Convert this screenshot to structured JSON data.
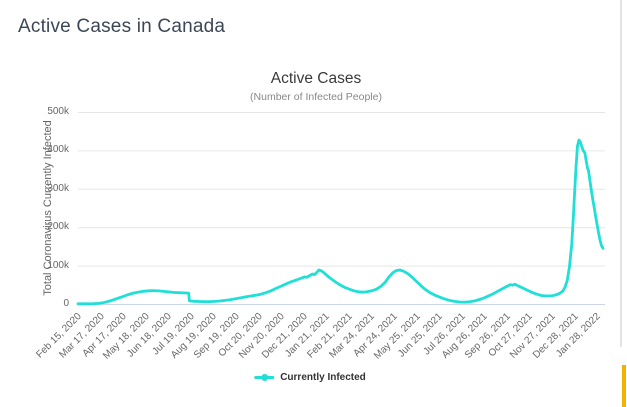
{
  "page": {
    "title": "Active Cases in Canada"
  },
  "colors": {
    "accent_line": "#20dfd6",
    "gridline": "#e6e6e6",
    "axis_line": "#ccd6eb",
    "title_text": "#3c4756",
    "muted_text": "#666666",
    "legend_text": "#333333",
    "right_border": "#e3e3e3",
    "yellow_strip": "#f0b400"
  },
  "chart_data": {
    "type": "line",
    "title": "Active Cases",
    "subtitle": "(Number of Infected People)",
    "xlabel": "",
    "ylabel": "Total Coronavirus Currently Infected",
    "legend": [
      "Currently Infected"
    ],
    "legend_position": "bottom",
    "grid": true,
    "x_range": [
      "2020-02-15",
      "2022-02-05"
    ],
    "y_range": [
      0,
      500000
    ],
    "y_ticks": [
      {
        "value": 0,
        "label": "0"
      },
      {
        "value": 100000,
        "label": "100k"
      },
      {
        "value": 200000,
        "label": "200k"
      },
      {
        "value": 300000,
        "label": "300k"
      },
      {
        "value": 400000,
        "label": "400k"
      },
      {
        "value": 500000,
        "label": "500k"
      }
    ],
    "x_ticks": [
      {
        "date": "2020-02-15",
        "label": "Feb 15, 2020"
      },
      {
        "date": "2020-03-17",
        "label": "Mar 17, 2020"
      },
      {
        "date": "2020-04-17",
        "label": "Apr 17, 2020"
      },
      {
        "date": "2020-05-18",
        "label": "May 18, 2020"
      },
      {
        "date": "2020-06-18",
        "label": "Jun 18, 2020"
      },
      {
        "date": "2020-07-19",
        "label": "Jul 19, 2020"
      },
      {
        "date": "2020-08-19",
        "label": "Aug 19, 2020"
      },
      {
        "date": "2020-09-19",
        "label": "Sep 19, 2020"
      },
      {
        "date": "2020-10-20",
        "label": "Oct 20, 2020"
      },
      {
        "date": "2020-11-20",
        "label": "Nov 20, 2020"
      },
      {
        "date": "2020-12-21",
        "label": "Dec 21, 2020"
      },
      {
        "date": "2021-01-21",
        "label": "Jan 21, 2021"
      },
      {
        "date": "2021-02-21",
        "label": "Feb 21, 2021"
      },
      {
        "date": "2021-03-24",
        "label": "Mar 24, 2021"
      },
      {
        "date": "2021-04-24",
        "label": "Apr 24, 2021"
      },
      {
        "date": "2021-05-25",
        "label": "May 25, 2021"
      },
      {
        "date": "2021-06-25",
        "label": "Jun 25, 2021"
      },
      {
        "date": "2021-07-26",
        "label": "Jul 26, 2021"
      },
      {
        "date": "2021-08-26",
        "label": "Aug 26, 2021"
      },
      {
        "date": "2021-09-26",
        "label": "Sep 26, 2021"
      },
      {
        "date": "2021-10-27",
        "label": "Oct 27, 2021"
      },
      {
        "date": "2021-11-27",
        "label": "Nov 27, 2021"
      },
      {
        "date": "2021-12-28",
        "label": "Dec 28, 2021"
      },
      {
        "date": "2022-01-28",
        "label": "Jan 28, 2022"
      }
    ],
    "series": [
      {
        "name": "Currently Infected",
        "color": "#20dfd6",
        "points": [
          [
            "2020-02-15",
            400
          ],
          [
            "2020-02-22",
            400
          ],
          [
            "2020-02-29",
            500
          ],
          [
            "2020-03-07",
            800
          ],
          [
            "2020-03-14",
            1600
          ],
          [
            "2020-03-20",
            3200
          ],
          [
            "2020-03-27",
            6500
          ],
          [
            "2020-04-03",
            10500
          ],
          [
            "2020-04-10",
            15000
          ],
          [
            "2020-04-17",
            19500
          ],
          [
            "2020-04-24",
            24500
          ],
          [
            "2020-05-01",
            28500
          ],
          [
            "2020-05-08",
            31000
          ],
          [
            "2020-05-15",
            33000
          ],
          [
            "2020-05-22",
            34300
          ],
          [
            "2020-05-29",
            34800
          ],
          [
            "2020-06-05",
            34200
          ],
          [
            "2020-06-12",
            32800
          ],
          [
            "2020-06-18",
            31500
          ],
          [
            "2020-06-25",
            30200
          ],
          [
            "2020-07-02",
            29300
          ],
          [
            "2020-07-09",
            28800
          ],
          [
            "2020-07-16",
            28500
          ],
          [
            "2020-07-17",
            8200
          ],
          [
            "2020-07-24",
            7000
          ],
          [
            "2020-07-31",
            6400
          ],
          [
            "2020-08-07",
            6100
          ],
          [
            "2020-08-14",
            6300
          ],
          [
            "2020-08-21",
            6900
          ],
          [
            "2020-08-28",
            7900
          ],
          [
            "2020-09-04",
            9300
          ],
          [
            "2020-09-11",
            11200
          ],
          [
            "2020-09-18",
            13500
          ],
          [
            "2020-09-25",
            16000
          ],
          [
            "2020-10-02",
            18500
          ],
          [
            "2020-10-09",
            20800
          ],
          [
            "2020-10-16",
            22800
          ],
          [
            "2020-10-23",
            25500
          ],
          [
            "2020-10-30",
            29500
          ],
          [
            "2020-11-06",
            34500
          ],
          [
            "2020-11-13",
            40500
          ],
          [
            "2020-11-20",
            46500
          ],
          [
            "2020-11-27",
            52500
          ],
          [
            "2020-12-04",
            58000
          ],
          [
            "2020-12-11",
            62500
          ],
          [
            "2020-12-18",
            67500
          ],
          [
            "2020-12-22",
            70500
          ],
          [
            "2020-12-25",
            69500
          ],
          [
            "2020-12-29",
            74000
          ],
          [
            "2021-01-02",
            78000
          ],
          [
            "2021-01-05",
            76500
          ],
          [
            "2021-01-08",
            82500
          ],
          [
            "2021-01-11",
            88500
          ],
          [
            "2021-01-14",
            86500
          ],
          [
            "2021-01-18",
            81000
          ],
          [
            "2021-01-22",
            74500
          ],
          [
            "2021-01-26",
            68000
          ],
          [
            "2021-01-31",
            61000
          ],
          [
            "2021-02-05",
            54500
          ],
          [
            "2021-02-10",
            48500
          ],
          [
            "2021-02-15",
            43500
          ],
          [
            "2021-02-21",
            39000
          ],
          [
            "2021-02-27",
            35000
          ],
          [
            "2021-03-05",
            32000
          ],
          [
            "2021-03-11",
            30800
          ],
          [
            "2021-03-17",
            31500
          ],
          [
            "2021-03-24",
            34000
          ],
          [
            "2021-03-31",
            38500
          ],
          [
            "2021-04-06",
            46000
          ],
          [
            "2021-04-12",
            57000
          ],
          [
            "2021-04-17",
            70000
          ],
          [
            "2021-04-22",
            81000
          ],
          [
            "2021-04-27",
            87000
          ],
          [
            "2021-05-02",
            88500
          ],
          [
            "2021-05-07",
            85500
          ],
          [
            "2021-05-13",
            79000
          ],
          [
            "2021-05-19",
            69500
          ],
          [
            "2021-05-25",
            58500
          ],
          [
            "2021-05-31",
            47500
          ],
          [
            "2021-06-06",
            38000
          ],
          [
            "2021-06-12",
            30000
          ],
          [
            "2021-06-18",
            24000
          ],
          [
            "2021-06-25",
            18500
          ],
          [
            "2021-07-02",
            13500
          ],
          [
            "2021-07-09",
            9500
          ],
          [
            "2021-07-16",
            6800
          ],
          [
            "2021-07-23",
            5200
          ],
          [
            "2021-07-30",
            4800
          ],
          [
            "2021-08-06",
            5800
          ],
          [
            "2021-08-13",
            8200
          ],
          [
            "2021-08-20",
            12000
          ],
          [
            "2021-08-27",
            17000
          ],
          [
            "2021-09-03",
            23000
          ],
          [
            "2021-09-10",
            29500
          ],
          [
            "2021-09-16",
            36000
          ],
          [
            "2021-09-22",
            42000
          ],
          [
            "2021-09-27",
            47000
          ],
          [
            "2021-10-01",
            50500
          ],
          [
            "2021-10-04",
            49000
          ],
          [
            "2021-10-07",
            51500
          ],
          [
            "2021-10-10",
            48500
          ],
          [
            "2021-10-14",
            45000
          ],
          [
            "2021-10-19",
            40500
          ],
          [
            "2021-10-24",
            36000
          ],
          [
            "2021-10-29",
            31500
          ],
          [
            "2021-11-03",
            27500
          ],
          [
            "2021-11-08",
            24500
          ],
          [
            "2021-11-13",
            22000
          ],
          [
            "2021-11-18",
            21000
          ],
          [
            "2021-11-23",
            21000
          ],
          [
            "2021-11-28",
            22000
          ],
          [
            "2021-12-03",
            24000
          ],
          [
            "2021-12-08",
            28000
          ],
          [
            "2021-12-12",
            34500
          ],
          [
            "2021-12-15",
            44000
          ],
          [
            "2021-12-18",
            62000
          ],
          [
            "2021-12-21",
            98000
          ],
          [
            "2021-12-24",
            155000
          ],
          [
            "2021-12-26",
            215000
          ],
          [
            "2021-12-28",
            290000
          ],
          [
            "2021-12-30",
            360000
          ],
          [
            "2022-01-01",
            412000
          ],
          [
            "2022-01-03",
            427000
          ],
          [
            "2022-01-05",
            421000
          ],
          [
            "2022-01-07",
            409000
          ],
          [
            "2022-01-09",
            399000
          ],
          [
            "2022-01-11",
            394000
          ],
          [
            "2022-01-13",
            371000
          ],
          [
            "2022-01-15",
            352000
          ],
          [
            "2022-01-16",
            349000
          ],
          [
            "2022-01-18",
            322000
          ],
          [
            "2022-01-20",
            297000
          ],
          [
            "2022-01-22",
            272000
          ],
          [
            "2022-01-24",
            250000
          ],
          [
            "2022-01-26",
            227000
          ],
          [
            "2022-01-28",
            205000
          ],
          [
            "2022-01-30",
            185000
          ],
          [
            "2022-02-01",
            166000
          ],
          [
            "2022-02-03",
            152000
          ],
          [
            "2022-02-05",
            145000
          ]
        ]
      }
    ]
  }
}
